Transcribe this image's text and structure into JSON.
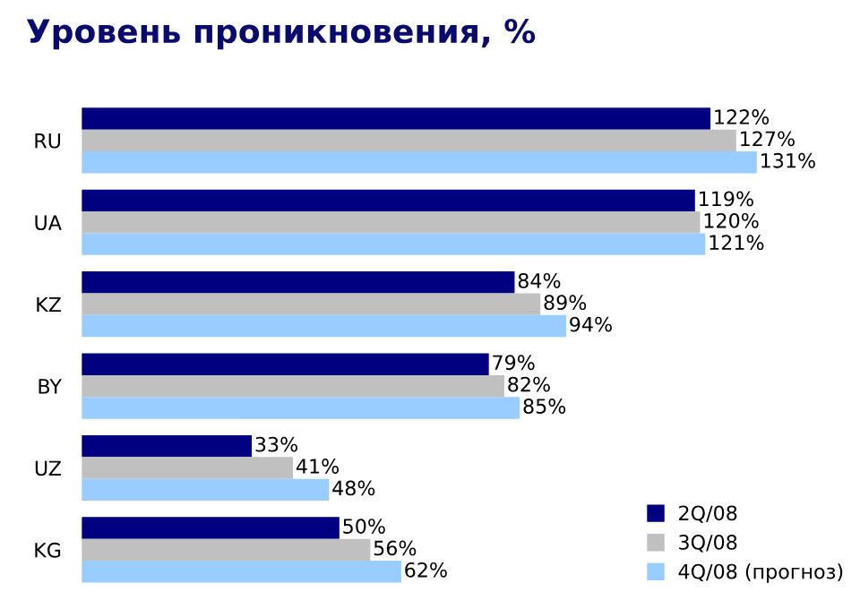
{
  "chart_data": {
    "type": "bar",
    "orientation": "horizontal",
    "title": "Уровень проникновения, %",
    "categories": [
      "RU",
      "UA",
      "KZ",
      "BY",
      "UZ",
      "KG"
    ],
    "series": [
      {
        "name": "2Q/08",
        "color": "#000080",
        "values": [
          122,
          119,
          84,
          79,
          33,
          50
        ],
        "value_labels": [
          "122%",
          "119%",
          "84%",
          "79%",
          "33%",
          "50%"
        ]
      },
      {
        "name": "3Q/08",
        "color": "#c0c0c0",
        "values": [
          127,
          120,
          89,
          82,
          41,
          56
        ],
        "value_labels": [
          "127%",
          "120%",
          "89%",
          "82%",
          "41%",
          "56%"
        ]
      },
      {
        "name": "4Q/08 (прогноз)",
        "color": "#99ccff",
        "values": [
          131,
          121,
          94,
          85,
          48,
          62
        ],
        "value_labels": [
          "131%",
          "121%",
          "94%",
          "85%",
          "48%",
          "62%"
        ]
      }
    ],
    "legend": "bottom right",
    "grid": false
  }
}
